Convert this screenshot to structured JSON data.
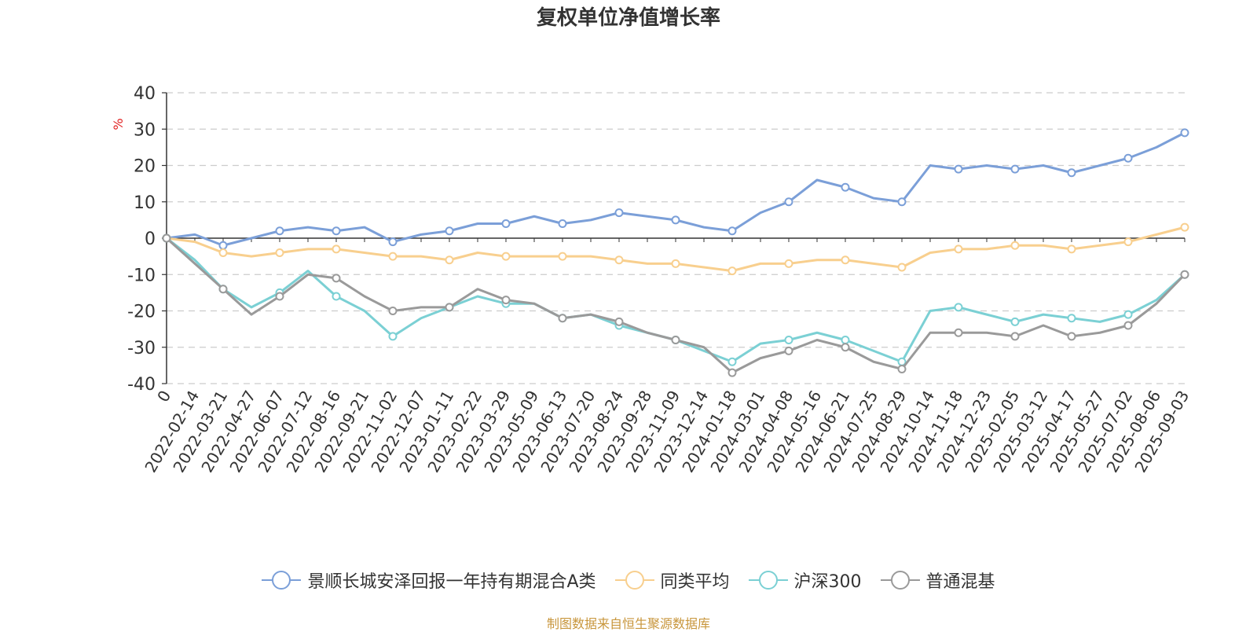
{
  "title": "复权单位净值增长率",
  "source_note": "制图数据来自恒生聚源数据库",
  "chart_data": {
    "type": "line",
    "title": "复权单位净值增长率",
    "ylabel": "%",
    "ylim": [
      -40,
      40
    ],
    "yticks": [
      40,
      30,
      20,
      10,
      0,
      -10,
      -20,
      -30,
      -40
    ],
    "grid": true,
    "legend_position": "bottom",
    "categories": [
      "0",
      "2022-02-14",
      "2022-03-21",
      "2022-04-27",
      "2022-06-07",
      "2022-07-12",
      "2022-08-16",
      "2022-09-21",
      "2022-11-02",
      "2022-12-07",
      "2023-01-11",
      "2023-02-22",
      "2023-03-29",
      "2023-05-09",
      "2023-06-13",
      "2023-07-20",
      "2023-08-24",
      "2023-09-28",
      "2023-11-09",
      "2023-12-14",
      "2024-01-18",
      "2024-03-01",
      "2024-04-08",
      "2024-05-16",
      "2024-06-21",
      "2024-07-25",
      "2024-08-29",
      "2024-10-14",
      "2024-11-18",
      "2024-12-23",
      "2025-02-05",
      "2025-03-12",
      "2025-04-17",
      "2025-05-27",
      "2025-07-02",
      "2025-08-06",
      "2025-09-03"
    ],
    "series": [
      {
        "name": "景顺长城安泽回报一年持有期混合A类",
        "color": "#7b9fd8",
        "values": [
          0,
          1,
          -2,
          0,
          2,
          3,
          2,
          3,
          -1,
          1,
          2,
          4,
          4,
          6,
          4,
          5,
          7,
          6,
          5,
          3,
          2,
          7,
          10,
          16,
          14,
          11,
          10,
          20,
          19,
          20,
          19,
          20,
          18,
          20,
          22,
          25,
          29
        ]
      },
      {
        "name": "同类平均",
        "color": "#f8cf8e",
        "values": [
          0,
          -1,
          -4,
          -5,
          -4,
          -3,
          -3,
          -4,
          -5,
          -5,
          -6,
          -4,
          -5,
          -5,
          -5,
          -5,
          -6,
          -7,
          -7,
          -8,
          -9,
          -7,
          -7,
          -6,
          -6,
          -7,
          -8,
          -4,
          -3,
          -3,
          -2,
          -2,
          -3,
          -2,
          -1,
          1,
          3
        ]
      },
      {
        "name": "沪深300",
        "color": "#7bd0d4",
        "values": [
          0,
          -6,
          -14,
          -19,
          -15,
          -9,
          -16,
          -20,
          -27,
          -22,
          -19,
          -16,
          -18,
          -18,
          -22,
          -21,
          -24,
          -26,
          -28,
          -31,
          -34,
          -29,
          -28,
          -26,
          -28,
          -31,
          -34,
          -20,
          -19,
          -21,
          -23,
          -21,
          -22,
          -23,
          -21,
          -17,
          -10
        ]
      },
      {
        "name": "普通混基",
        "color": "#9a9a9a",
        "values": [
          0,
          -7,
          -14,
          -21,
          -16,
          -10,
          -11,
          -16,
          -20,
          -19,
          -19,
          -14,
          -17,
          -18,
          -22,
          -21,
          -23,
          -26,
          -28,
          -30,
          -37,
          -33,
          -31,
          -28,
          -30,
          -34,
          -36,
          -26,
          -26,
          -26,
          -27,
          -24,
          -27,
          -26,
          -24,
          -18,
          -10
        ]
      }
    ]
  }
}
